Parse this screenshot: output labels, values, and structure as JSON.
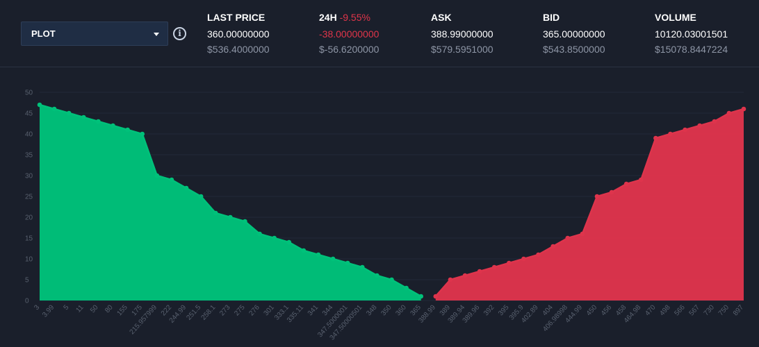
{
  "header": {
    "plot_select": {
      "label": "PLOT"
    },
    "stats": [
      {
        "title": "LAST PRICE",
        "change": "",
        "value": "360.00000000",
        "usd": "$536.4000000"
      },
      {
        "title": "24H",
        "change": "-9.55%",
        "value": "-38.00000000",
        "usd": "$-56.6200000"
      },
      {
        "title": "ASK",
        "change": "",
        "value": "388.99000000",
        "usd": "$579.5951000"
      },
      {
        "title": "BID",
        "change": "",
        "value": "365.00000000",
        "usd": "$543.8500000"
      },
      {
        "title": "VOLUME",
        "change": "",
        "value": "10120.03001501",
        "usd": "$15078.8447224"
      }
    ]
  },
  "colors": {
    "bid": "#00c17a",
    "ask": "#de344c",
    "background": "#1a1f2b"
  },
  "chart_data": {
    "type": "area",
    "ylim": [
      0,
      50
    ],
    "yticks": [
      0,
      5,
      10,
      15,
      20,
      25,
      30,
      35,
      40,
      45,
      50
    ],
    "grid": true,
    "categories": [
      "3",
      "3.99",
      "5",
      "11",
      "50",
      "80",
      "155",
      "175",
      "215.957999",
      "222",
      "244.99",
      "251.5",
      "258.1",
      "273",
      "275",
      "276",
      "301",
      "333.1",
      "335.11",
      "341",
      "344",
      "347.5000001",
      "347.50000501",
      "348",
      "350",
      "360",
      "365",
      "388.99",
      "389",
      "389.94",
      "389.96",
      "392",
      "395",
      "395.9",
      "402.89",
      "404",
      "406.98998",
      "444.99",
      "450",
      "456",
      "458",
      "464.98",
      "470",
      "498",
      "566",
      "567",
      "730",
      "750",
      "897"
    ],
    "series": [
      {
        "side": "bid",
        "values": [
          47,
          46,
          45,
          44,
          43,
          42,
          41,
          40,
          30,
          29,
          27,
          25,
          21,
          20,
          19,
          16,
          15,
          14,
          12,
          11,
          10,
          9,
          8,
          6,
          5,
          3,
          1,
          null,
          null,
          null,
          null,
          null,
          null,
          null,
          null,
          null,
          null,
          null,
          null,
          null,
          null,
          null,
          null,
          null,
          null,
          null,
          null,
          null,
          null
        ]
      },
      {
        "side": "ask",
        "values": [
          null,
          null,
          null,
          null,
          null,
          null,
          null,
          null,
          null,
          null,
          null,
          null,
          null,
          null,
          null,
          null,
          null,
          null,
          null,
          null,
          null,
          null,
          null,
          null,
          null,
          null,
          null,
          1,
          5,
          6,
          7,
          8,
          9,
          10,
          11,
          13,
          15,
          16,
          25,
          26,
          28,
          29,
          39,
          40,
          41,
          42,
          43,
          45,
          46
        ]
      }
    ]
  }
}
